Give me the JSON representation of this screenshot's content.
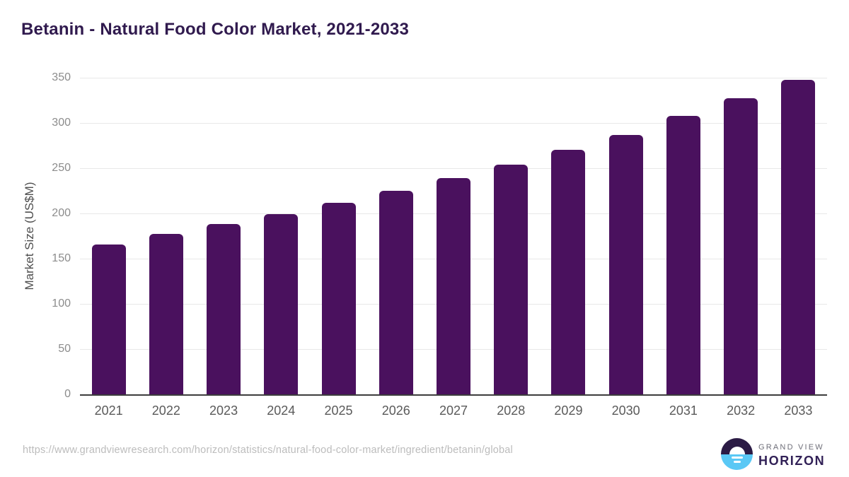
{
  "title": "Betanin - Natural Food Color Market, 2021-2033",
  "source_url": "https://www.grandviewresearch.com/horizon/statistics/natural-food-color-market/ingredient/betanin/global",
  "logo": {
    "line1": "GRAND VIEW",
    "line2": "HORIZON"
  },
  "colors": {
    "title_text": "#301a4e",
    "bar_fill": "#4a115e",
    "gridline": "#e8e8e8",
    "axis_line": "#3d3d3d",
    "ytick_text": "#8c8c8c",
    "xtick_text": "#5a5a5a",
    "ylabel_text": "#4f4f4f",
    "source_text": "#bcbcbc",
    "logo_dark": "#2b1b45",
    "logo_blue": "#5ac8f5",
    "logo_grandview_text": "#6e6e78",
    "logo_horizon_text": "#322157"
  },
  "chart_data": {
    "type": "bar",
    "title": "Betanin - Natural Food Color Market, 2021-2033",
    "categories": [
      "2021",
      "2022",
      "2023",
      "2024",
      "2025",
      "2026",
      "2027",
      "2028",
      "2029",
      "2030",
      "2031",
      "2032",
      "2033"
    ],
    "values": [
      166,
      177,
      188,
      199,
      212,
      225,
      239,
      254,
      270,
      287,
      308,
      327,
      348
    ],
    "xlabel": "",
    "ylabel": "Market Size (US$M)",
    "ylim": [
      0,
      350
    ],
    "ytick_step": 50,
    "yticks": [
      0,
      50,
      100,
      150,
      200,
      250,
      300,
      350
    ],
    "grid": "horizontal",
    "legend": "none",
    "bar_color": "#4a115e"
  }
}
